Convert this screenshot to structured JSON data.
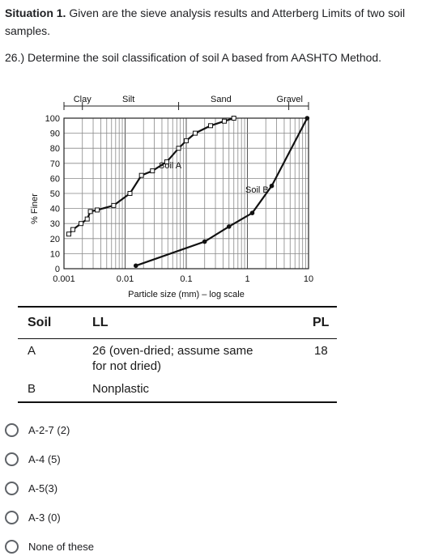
{
  "question": {
    "situation_label": "Situation 1.",
    "situation_text": " Given are the sieve analysis results and Atterberg Limits of two soil samples.",
    "prompt": "26.) Determine the soil classification of soil A based from AASHTO Method."
  },
  "chart_data": {
    "type": "line",
    "xlabel": "Particle size (mm) – log scale",
    "ylabel": "% Finer",
    "xscale": "log",
    "xlim": [
      0.001,
      10
    ],
    "ylim": [
      0,
      100
    ],
    "x_ticks": [
      "0.001",
      "0.01",
      "0.1",
      "1",
      "10"
    ],
    "y_ticks": [
      "0",
      "10",
      "20",
      "30",
      "40",
      "50",
      "60",
      "70",
      "80",
      "90",
      "100"
    ],
    "size_ranges": [
      "Clay",
      "Silt",
      "Sand",
      "Gravel"
    ],
    "grid": true,
    "series": [
      {
        "name": "Soil A",
        "marker": "square",
        "x": [
          0.0012,
          0.0014,
          0.0019,
          0.0024,
          0.0027,
          0.0035,
          0.0065,
          0.012,
          0.0185,
          0.028,
          0.048,
          0.075,
          0.1,
          0.14,
          0.25,
          0.42,
          0.6
        ],
        "y": [
          23,
          26,
          30,
          33,
          38,
          39,
          42,
          50,
          62,
          65,
          71,
          80,
          85,
          90,
          95,
          98,
          100
        ]
      },
      {
        "name": "Soil B",
        "marker": "dot",
        "x": [
          0.015,
          0.2,
          0.5,
          1.2,
          2.5,
          9.5
        ],
        "y": [
          2,
          18,
          28,
          37,
          55,
          100
        ]
      }
    ]
  },
  "table": {
    "headers": {
      "soil": "Soil",
      "ll": "LL",
      "pl": "PL"
    },
    "rows": [
      {
        "soil": "A",
        "ll_line1": "26 (oven-dried; assume same",
        "ll_line2": "for not dried)",
        "pl": "18"
      },
      {
        "soil": "B",
        "ll_line1": "Nonplastic",
        "ll_line2": "",
        "pl": ""
      }
    ]
  },
  "options": [
    "A-2-7 (2)",
    "A-4 (5)",
    "A-5(3)",
    "A-3 (0)",
    "None of these"
  ]
}
